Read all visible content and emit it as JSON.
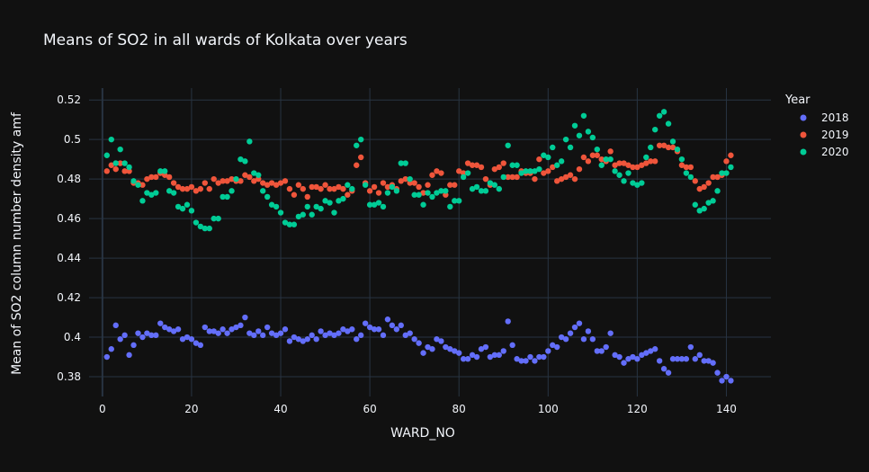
{
  "chart_data": {
    "type": "scatter",
    "title": "Means of SO2 in all wards of Kolkata over years",
    "xlabel": "WARD_NO",
    "ylabel": "Mean of SO2 column number density amf",
    "xlim": [
      -3,
      150
    ],
    "ylim": [
      0.37,
      0.526
    ],
    "xticks": [
      0,
      20,
      40,
      60,
      80,
      100,
      120,
      140
    ],
    "yticks": [
      0.38,
      0.4,
      0.42,
      0.44,
      0.46,
      0.48,
      0.5,
      0.52
    ],
    "ytick_labels": [
      "0.38",
      "0.4",
      "0.42",
      "0.44",
      "0.46",
      "0.48",
      "0.5",
      "0.52"
    ],
    "grid": true,
    "legend_title": "Year",
    "legend_position": "top-right",
    "background": "#111111",
    "x": [
      1,
      2,
      3,
      4,
      5,
      6,
      7,
      8,
      9,
      10,
      11,
      12,
      13,
      14,
      15,
      16,
      17,
      18,
      19,
      20,
      21,
      22,
      23,
      24,
      25,
      26,
      27,
      28,
      29,
      30,
      31,
      32,
      33,
      34,
      35,
      36,
      37,
      38,
      39,
      40,
      41,
      42,
      43,
      44,
      45,
      46,
      47,
      48,
      49,
      50,
      51,
      52,
      53,
      54,
      55,
      56,
      57,
      58,
      59,
      60,
      61,
      62,
      63,
      64,
      65,
      66,
      67,
      68,
      69,
      70,
      71,
      72,
      73,
      74,
      75,
      76,
      77,
      78,
      79,
      80,
      81,
      82,
      83,
      84,
      85,
      86,
      87,
      88,
      89,
      90,
      91,
      92,
      93,
      94,
      95,
      96,
      97,
      98,
      99,
      100,
      101,
      102,
      103,
      104,
      105,
      106,
      107,
      108,
      109,
      110,
      111,
      112,
      113,
      114,
      115,
      116,
      117,
      118,
      119,
      120,
      121,
      122,
      123,
      124,
      125,
      126,
      127,
      128,
      129,
      130,
      131,
      132,
      133,
      134,
      135,
      136,
      137,
      138,
      139,
      140,
      141
    ],
    "series": [
      {
        "name": "2018",
        "color": "#636efa",
        "values": [
          0.39,
          0.394,
          0.406,
          0.399,
          0.401,
          0.391,
          0.396,
          0.402,
          0.4,
          0.402,
          0.401,
          0.401,
          0.407,
          0.405,
          0.404,
          0.403,
          0.404,
          0.399,
          0.4,
          0.399,
          0.397,
          0.396,
          0.405,
          0.403,
          0.403,
          0.402,
          0.404,
          0.402,
          0.404,
          0.405,
          0.406,
          0.41,
          0.402,
          0.401,
          0.403,
          0.401,
          0.405,
          0.402,
          0.401,
          0.402,
          0.404,
          0.398,
          0.4,
          0.399,
          0.398,
          0.399,
          0.401,
          0.399,
          0.403,
          0.401,
          0.402,
          0.401,
          0.402,
          0.404,
          0.403,
          0.404,
          0.399,
          0.401,
          0.407,
          0.405,
          0.404,
          0.404,
          0.401,
          0.409,
          0.406,
          0.404,
          0.406,
          0.401,
          0.402,
          0.399,
          0.397,
          0.392,
          0.395,
          0.394,
          0.399,
          0.398,
          0.395,
          0.394,
          0.393,
          0.392,
          0.389,
          0.389,
          0.391,
          0.39,
          0.394,
          0.395,
          0.39,
          0.391,
          0.391,
          0.393,
          0.408,
          0.396,
          0.389,
          0.388,
          0.388,
          0.39,
          0.388,
          0.39,
          0.39,
          0.393,
          0.396,
          0.395,
          0.4,
          0.399,
          0.402,
          0.405,
          0.407,
          0.399,
          0.403,
          0.399,
          0.393,
          0.393,
          0.395,
          0.402,
          0.391,
          0.39,
          0.387,
          0.389,
          0.39,
          0.389,
          0.391,
          0.392,
          0.393,
          0.394,
          0.388,
          0.384,
          0.382,
          0.389,
          0.389,
          0.389,
          0.389,
          0.395,
          0.389,
          0.391,
          0.388,
          0.388,
          0.387,
          0.382,
          0.378,
          0.38,
          0.378
        ]
      },
      {
        "name": "2019",
        "color": "#ef553b",
        "values": [
          0.484,
          0.487,
          0.485,
          0.488,
          0.484,
          0.484,
          0.478,
          0.478,
          0.477,
          0.48,
          0.481,
          0.481,
          0.483,
          0.482,
          0.481,
          0.478,
          0.476,
          0.475,
          0.475,
          0.476,
          0.474,
          0.475,
          0.478,
          0.475,
          0.48,
          0.478,
          0.479,
          0.479,
          0.48,
          0.479,
          0.479,
          0.482,
          0.481,
          0.479,
          0.48,
          0.478,
          0.477,
          0.478,
          0.477,
          0.478,
          0.479,
          0.475,
          0.472,
          0.477,
          0.475,
          0.471,
          0.476,
          0.476,
          0.475,
          0.477,
          0.475,
          0.475,
          0.476,
          0.475,
          0.472,
          0.474,
          0.487,
          0.491,
          0.478,
          0.474,
          0.476,
          0.473,
          0.478,
          0.476,
          0.477,
          0.475,
          0.479,
          0.48,
          0.478,
          0.478,
          0.476,
          0.473,
          0.477,
          0.482,
          0.484,
          0.483,
          0.472,
          0.477,
          0.477,
          0.484,
          0.483,
          0.488,
          0.487,
          0.487,
          0.486,
          0.48,
          0.477,
          0.485,
          0.486,
          0.488,
          0.481,
          0.481,
          0.481,
          0.484,
          0.483,
          0.483,
          0.48,
          0.49,
          0.483,
          0.484,
          0.486,
          0.479,
          0.48,
          0.481,
          0.482,
          0.48,
          0.485,
          0.491,
          0.489,
          0.492,
          0.492,
          0.49,
          0.489,
          0.494,
          0.487,
          0.488,
          0.488,
          0.487,
          0.486,
          0.486,
          0.487,
          0.488,
          0.489,
          0.489,
          0.497,
          0.497,
          0.496,
          0.496,
          0.494,
          0.487,
          0.486,
          0.486,
          0.479,
          0.475,
          0.476,
          0.478,
          0.481,
          0.481,
          0.482,
          0.489,
          0.492
        ]
      },
      {
        "name": "2020",
        "color": "#00cc96",
        "values": [
          0.492,
          0.5,
          0.488,
          0.495,
          0.488,
          0.486,
          0.479,
          0.477,
          0.469,
          0.473,
          0.472,
          0.473,
          0.484,
          0.484,
          0.474,
          0.473,
          0.466,
          0.465,
          0.467,
          0.464,
          0.458,
          0.456,
          0.455,
          0.455,
          0.46,
          0.46,
          0.471,
          0.471,
          0.474,
          0.48,
          0.49,
          0.489,
          0.499,
          0.483,
          0.482,
          0.474,
          0.471,
          0.467,
          0.466,
          0.463,
          0.458,
          0.457,
          0.457,
          0.461,
          0.462,
          0.466,
          0.462,
          0.466,
          0.465,
          0.469,
          0.468,
          0.463,
          0.469,
          0.47,
          0.477,
          0.475,
          0.497,
          0.5,
          0.477,
          0.467,
          0.467,
          0.468,
          0.466,
          0.473,
          0.476,
          0.474,
          0.488,
          0.488,
          0.48,
          0.472,
          0.472,
          0.467,
          0.473,
          0.471,
          0.473,
          0.474,
          0.474,
          0.466,
          0.469,
          0.469,
          0.481,
          0.483,
          0.475,
          0.476,
          0.474,
          0.474,
          0.478,
          0.477,
          0.475,
          0.481,
          0.497,
          0.487,
          0.487,
          0.483,
          0.484,
          0.484,
          0.484,
          0.485,
          0.492,
          0.491,
          0.496,
          0.487,
          0.489,
          0.5,
          0.496,
          0.507,
          0.502,
          0.512,
          0.504,
          0.501,
          0.495,
          0.487,
          0.49,
          0.49,
          0.484,
          0.482,
          0.479,
          0.483,
          0.478,
          0.477,
          0.478,
          0.491,
          0.496,
          0.505,
          0.512,
          0.514,
          0.508,
          0.499,
          0.495,
          0.49,
          0.483,
          0.481,
          0.467,
          0.464,
          0.465,
          0.468,
          0.469,
          0.474,
          0.483,
          0.483,
          0.486
        ]
      }
    ]
  }
}
